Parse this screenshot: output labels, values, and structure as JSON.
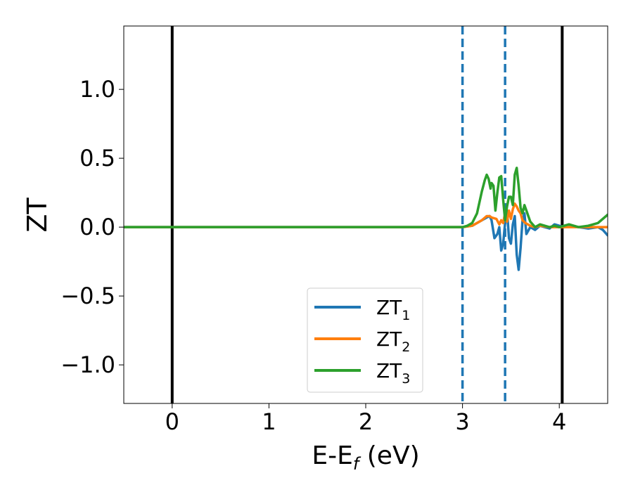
{
  "chart_data": {
    "type": "line",
    "title": "",
    "xlabel": {
      "main": "E-E",
      "sub": "f",
      "unit": " (eV)"
    },
    "ylabel": "ZT",
    "xlim": [
      -0.5,
      4.5
    ],
    "ylim": [
      -1.28,
      1.46
    ],
    "xticks": [
      {
        "value": 0,
        "label": "0"
      },
      {
        "value": 1,
        "label": "1"
      },
      {
        "value": 2,
        "label": "2"
      },
      {
        "value": 3,
        "label": "3"
      },
      {
        "value": 4,
        "label": "4"
      }
    ],
    "yticks": [
      {
        "value": 1.0,
        "label": "1.0"
      },
      {
        "value": 0.5,
        "label": "0.5"
      },
      {
        "value": 0.0,
        "label": "0.0"
      },
      {
        "value": -0.5,
        "label": "−0.5"
      },
      {
        "value": -1.0,
        "label": "−1.0"
      }
    ],
    "grid": false,
    "legend_position": "lower-center",
    "vlines": [
      {
        "x": 0.0,
        "style": "solid",
        "color": "#000000"
      },
      {
        "x": 4.03,
        "style": "solid",
        "color": "#000000"
      },
      {
        "x": 3.0,
        "style": "dashed",
        "color": "#1f77b4"
      },
      {
        "x": 3.44,
        "style": "dashed",
        "color": "#1f77b4"
      }
    ],
    "series": [
      {
        "name": "ZT",
        "sub": "1",
        "color": "#1f77b4",
        "x": [
          -0.5,
          2.9,
          3.0,
          3.1,
          3.2,
          3.25,
          3.28,
          3.3,
          3.33,
          3.36,
          3.38,
          3.4,
          3.42,
          3.44,
          3.46,
          3.48,
          3.5,
          3.52,
          3.54,
          3.56,
          3.58,
          3.6,
          3.62,
          3.64,
          3.66,
          3.7,
          3.75,
          3.8,
          3.85,
          3.9,
          3.95,
          4.0,
          4.05,
          4.1,
          4.2,
          4.3,
          4.4,
          4.45,
          4.5
        ],
        "y": [
          0.0,
          0.0,
          0.0,
          0.01,
          0.05,
          0.07,
          0.08,
          0.05,
          -0.08,
          -0.05,
          0.0,
          -0.17,
          -0.12,
          0.03,
          0.12,
          -0.08,
          -0.12,
          0.02,
          0.08,
          -0.2,
          -0.31,
          -0.15,
          0.05,
          0.1,
          -0.05,
          0.0,
          -0.02,
          0.01,
          0.0,
          -0.01,
          0.02,
          0.01,
          0.0,
          0.01,
          0.0,
          -0.01,
          0.0,
          -0.02,
          -0.06
        ]
      },
      {
        "name": "ZT",
        "sub": "2",
        "color": "#ff7f0e",
        "x": [
          -0.5,
          2.9,
          3.0,
          3.1,
          3.2,
          3.25,
          3.28,
          3.3,
          3.35,
          3.38,
          3.4,
          3.42,
          3.44,
          3.46,
          3.48,
          3.5,
          3.52,
          3.54,
          3.56,
          3.58,
          3.6,
          3.62,
          3.65,
          3.7,
          3.75,
          3.8,
          3.9,
          4.0,
          4.1,
          4.2,
          4.3,
          4.4,
          4.5
        ],
        "y": [
          0.0,
          0.0,
          0.0,
          0.01,
          0.05,
          0.08,
          0.08,
          0.07,
          0.06,
          0.02,
          0.05,
          0.03,
          0.1,
          0.04,
          0.12,
          0.06,
          0.13,
          0.17,
          0.15,
          0.12,
          0.1,
          0.05,
          0.03,
          0.01,
          0.0,
          0.01,
          0.0,
          0.0,
          0.0,
          0.0,
          0.0,
          0.0,
          0.0
        ]
      },
      {
        "name": "ZT",
        "sub": "3",
        "color": "#2ca02c",
        "x": [
          -0.5,
          2.9,
          3.0,
          3.05,
          3.1,
          3.15,
          3.2,
          3.23,
          3.25,
          3.27,
          3.29,
          3.3,
          3.32,
          3.34,
          3.36,
          3.38,
          3.4,
          3.42,
          3.44,
          3.46,
          3.48,
          3.5,
          3.52,
          3.54,
          3.56,
          3.58,
          3.6,
          3.62,
          3.64,
          3.66,
          3.7,
          3.75,
          3.8,
          3.85,
          3.9,
          3.95,
          4.0,
          4.1,
          4.2,
          4.3,
          4.4,
          4.45,
          4.5
        ],
        "y": [
          0.0,
          0.0,
          0.0,
          0.01,
          0.03,
          0.1,
          0.26,
          0.34,
          0.38,
          0.35,
          0.28,
          0.32,
          0.3,
          0.12,
          0.25,
          0.36,
          0.37,
          0.2,
          0.05,
          0.15,
          0.22,
          0.22,
          0.16,
          0.38,
          0.43,
          0.3,
          0.14,
          0.1,
          0.16,
          0.12,
          0.04,
          0.0,
          0.02,
          0.01,
          0.0,
          0.01,
          0.0,
          0.02,
          0.0,
          0.01,
          0.03,
          0.06,
          0.09
        ]
      }
    ]
  }
}
